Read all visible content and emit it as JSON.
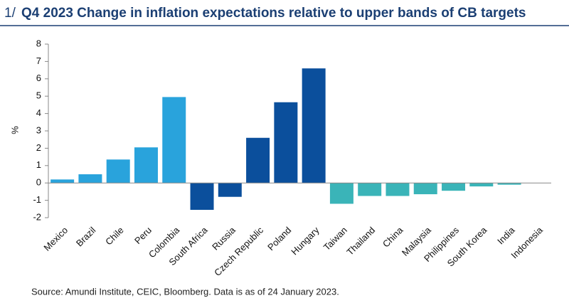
{
  "chart_data": {
    "type": "bar",
    "title_prefix": "1/",
    "title": "Q4 2023 Change in inflation expectations relative to upper bands of CB targets",
    "ylabel": "%",
    "source": "Source: Amundi Institute, CEIC, Bloomberg. Data is as of 24 January 2023.",
    "categories": [
      "Mexico",
      "Brazil",
      "Chile",
      "Peru",
      "Colombia",
      "South Africa",
      "Russia",
      "Czech Republic",
      "Poland",
      "Hungary",
      "Taiwan",
      "Thailand",
      "China",
      "Malaysia",
      "Philippines",
      "South Korea",
      "India",
      "Indonesia"
    ],
    "values": [
      0.2,
      0.5,
      1.35,
      2.05,
      4.95,
      -1.55,
      -0.8,
      2.6,
      4.65,
      6.6,
      -1.2,
      -0.75,
      -0.75,
      -0.65,
      -0.45,
      -0.2,
      -0.1,
      0
    ],
    "colors": [
      "#29a3dc",
      "#29a3dc",
      "#29a3dc",
      "#29a3dc",
      "#29a3dc",
      "#0b4f9c",
      "#0b4f9c",
      "#0b4f9c",
      "#0b4f9c",
      "#0b4f9c",
      "#3ab4b8",
      "#3ab4b8",
      "#3ab4b8",
      "#3ab4b8",
      "#3ab4b8",
      "#3ab4b8",
      "#3ab4b8",
      "#3ab4b8"
    ],
    "ylim": [
      -2,
      8
    ],
    "yticks": [
      -2,
      -1,
      0,
      1,
      2,
      3,
      4,
      5,
      6,
      7,
      8
    ],
    "grid": false
  }
}
